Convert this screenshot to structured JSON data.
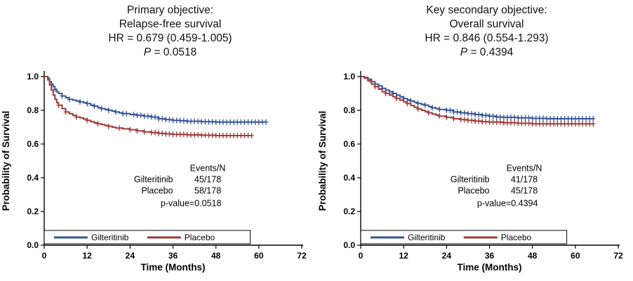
{
  "chart_data": [
    {
      "type": "line",
      "subtype": "kaplan-meier-step",
      "title_lines": [
        "Primary objective:",
        "Relapse-free survival"
      ],
      "hr_text": "HR = 0.679 (0.459-1.005)",
      "p_label": "P",
      "p_value": "= 0.0518",
      "xlabel": "Time (Months)",
      "ylabel": "Probability of Survival",
      "xlim": [
        0,
        72
      ],
      "xticks": [
        0,
        12,
        24,
        36,
        48,
        60,
        72
      ],
      "ylim": [
        0,
        1.0
      ],
      "yticks": [
        0.0,
        0.2,
        0.4,
        0.6,
        0.8,
        1.0
      ],
      "grid": false,
      "legend_position": "bottom-inside-box",
      "annotation": {
        "header": "Events/N",
        "rows": [
          [
            "Gilteritinib",
            "45/178"
          ],
          [
            "Placebo",
            "58/178"
          ]
        ],
        "footer": "p-value=0.0518"
      },
      "series": [
        {
          "name": "Gilteritinib",
          "color": "#35549b",
          "steps": [
            [
              0,
              1.0
            ],
            [
              1,
              0.99
            ],
            [
              1.5,
              0.97
            ],
            [
              2,
              0.955
            ],
            [
              2.5,
              0.94
            ],
            [
              3,
              0.925
            ],
            [
              3.5,
              0.91
            ],
            [
              4,
              0.9
            ],
            [
              5,
              0.885
            ],
            [
              6,
              0.875
            ],
            [
              7,
              0.865
            ],
            [
              8,
              0.86
            ],
            [
              9,
              0.855
            ],
            [
              10,
              0.85
            ],
            [
              11,
              0.845
            ],
            [
              12,
              0.84
            ],
            [
              13,
              0.83
            ],
            [
              14,
              0.825
            ],
            [
              15,
              0.815
            ],
            [
              16,
              0.81
            ],
            [
              17,
              0.805
            ],
            [
              18,
              0.8
            ],
            [
              19,
              0.795
            ],
            [
              20,
              0.79
            ],
            [
              21,
              0.785
            ],
            [
              22,
              0.78
            ],
            [
              24,
              0.775
            ],
            [
              26,
              0.77
            ],
            [
              28,
              0.765
            ],
            [
              30,
              0.76
            ],
            [
              32,
              0.75
            ],
            [
              34,
              0.745
            ],
            [
              36,
              0.74
            ],
            [
              38,
              0.738
            ],
            [
              40,
              0.735
            ],
            [
              44,
              0.732
            ],
            [
              48,
              0.73
            ],
            [
              62,
              0.73
            ]
          ],
          "censors": [
            3,
            5,
            7,
            10,
            12,
            14,
            16,
            18,
            20,
            22,
            23,
            25,
            26,
            27,
            28,
            29,
            30,
            31,
            32,
            33,
            34,
            35,
            36,
            37,
            38,
            39,
            40,
            41,
            42,
            43,
            44,
            45,
            46,
            47,
            48,
            49,
            50,
            51,
            52,
            53,
            54,
            55,
            56,
            57,
            58,
            59,
            60,
            61,
            62
          ]
        },
        {
          "name": "Placebo",
          "color": "#9e3b38",
          "steps": [
            [
              0,
              1.0
            ],
            [
              1,
              0.98
            ],
            [
              1.5,
              0.95
            ],
            [
              2,
              0.92
            ],
            [
              2.5,
              0.89
            ],
            [
              3,
              0.865
            ],
            [
              3.5,
              0.845
            ],
            [
              4,
              0.83
            ],
            [
              5,
              0.81
            ],
            [
              6,
              0.79
            ],
            [
              7,
              0.78
            ],
            [
              8,
              0.77
            ],
            [
              9,
              0.76
            ],
            [
              10,
              0.755
            ],
            [
              11,
              0.748
            ],
            [
              12,
              0.74
            ],
            [
              13,
              0.732
            ],
            [
              14,
              0.725
            ],
            [
              15,
              0.72
            ],
            [
              16,
              0.715
            ],
            [
              17,
              0.71
            ],
            [
              18,
              0.705
            ],
            [
              19,
              0.7
            ],
            [
              20,
              0.695
            ],
            [
              22,
              0.69
            ],
            [
              24,
              0.685
            ],
            [
              26,
              0.678
            ],
            [
              28,
              0.672
            ],
            [
              30,
              0.668
            ],
            [
              32,
              0.663
            ],
            [
              34,
              0.66
            ],
            [
              36,
              0.657
            ],
            [
              40,
              0.654
            ],
            [
              44,
              0.652
            ],
            [
              48,
              0.65
            ],
            [
              58,
              0.65
            ]
          ],
          "censors": [
            4,
            6,
            9,
            12,
            15,
            18,
            21,
            24,
            26,
            28,
            30,
            31,
            32,
            33,
            34,
            35,
            36,
            37,
            38,
            39,
            40,
            41,
            42,
            43,
            44,
            45,
            46,
            47,
            48,
            49,
            50,
            51,
            52,
            53,
            54,
            55,
            56,
            57,
            58
          ]
        }
      ]
    },
    {
      "type": "line",
      "subtype": "kaplan-meier-step",
      "title_lines": [
        "Key secondary objective:",
        "Overall survival"
      ],
      "hr_text": "HR = 0.846 (0.554-1.293)",
      "p_label": "P",
      "p_value": "= 0.4394",
      "xlabel": "Time (Months)",
      "ylabel": "Probability of Survival",
      "xlim": [
        0,
        72
      ],
      "xticks": [
        0,
        12,
        24,
        36,
        48,
        60,
        72
      ],
      "ylim": [
        0,
        1.0
      ],
      "yticks": [
        0.0,
        0.2,
        0.4,
        0.6,
        0.8,
        1.0
      ],
      "grid": false,
      "legend_position": "bottom-inside-box",
      "annotation": {
        "header": "Events/N",
        "rows": [
          [
            "Gilteritinib",
            "41/178"
          ],
          [
            "Placebo",
            "45/178"
          ]
        ],
        "footer": "p-value=0.4394"
      },
      "series": [
        {
          "name": "Gilteritinib",
          "color": "#35549b",
          "steps": [
            [
              0,
              1.0
            ],
            [
              1,
              0.995
            ],
            [
              2,
              0.985
            ],
            [
              3,
              0.97
            ],
            [
              4,
              0.955
            ],
            [
              5,
              0.945
            ],
            [
              6,
              0.93
            ],
            [
              7,
              0.92
            ],
            [
              8,
              0.91
            ],
            [
              9,
              0.9
            ],
            [
              10,
              0.89
            ],
            [
              11,
              0.88
            ],
            [
              12,
              0.87
            ],
            [
              13,
              0.862
            ],
            [
              14,
              0.855
            ],
            [
              15,
              0.847
            ],
            [
              16,
              0.84
            ],
            [
              17,
              0.835
            ],
            [
              18,
              0.83
            ],
            [
              19,
              0.822
            ],
            [
              20,
              0.815
            ],
            [
              21,
              0.81
            ],
            [
              22,
              0.805
            ],
            [
              24,
              0.8
            ],
            [
              26,
              0.79
            ],
            [
              28,
              0.785
            ],
            [
              30,
              0.78
            ],
            [
              32,
              0.775
            ],
            [
              34,
              0.77
            ],
            [
              36,
              0.765
            ],
            [
              38,
              0.76
            ],
            [
              40,
              0.758
            ],
            [
              44,
              0.755
            ],
            [
              48,
              0.752
            ],
            [
              52,
              0.75
            ],
            [
              65,
              0.75
            ]
          ],
          "censors": [
            3,
            6,
            9,
            12,
            14,
            16,
            18,
            20,
            22,
            24,
            25,
            26,
            27,
            28,
            29,
            30,
            31,
            32,
            33,
            34,
            35,
            36,
            37,
            38,
            39,
            40,
            41,
            42,
            43,
            44,
            45,
            46,
            47,
            48,
            49,
            50,
            51,
            52,
            53,
            54,
            55,
            56,
            57,
            58,
            59,
            60,
            61,
            62,
            63,
            64,
            65
          ]
        },
        {
          "name": "Placebo",
          "color": "#9e3b38",
          "steps": [
            [
              0,
              1.0
            ],
            [
              1,
              0.99
            ],
            [
              2,
              0.975
            ],
            [
              3,
              0.955
            ],
            [
              4,
              0.94
            ],
            [
              5,
              0.925
            ],
            [
              6,
              0.91
            ],
            [
              7,
              0.9
            ],
            [
              8,
              0.89
            ],
            [
              9,
              0.88
            ],
            [
              10,
              0.87
            ],
            [
              11,
              0.86
            ],
            [
              12,
              0.85
            ],
            [
              13,
              0.84
            ],
            [
              14,
              0.828
            ],
            [
              15,
              0.818
            ],
            [
              16,
              0.808
            ],
            [
              17,
              0.8
            ],
            [
              18,
              0.792
            ],
            [
              19,
              0.785
            ],
            [
              20,
              0.778
            ],
            [
              21,
              0.772
            ],
            [
              22,
              0.766
            ],
            [
              24,
              0.758
            ],
            [
              26,
              0.75
            ],
            [
              28,
              0.745
            ],
            [
              30,
              0.74
            ],
            [
              32,
              0.736
            ],
            [
              34,
              0.732
            ],
            [
              36,
              0.73
            ],
            [
              40,
              0.726
            ],
            [
              44,
              0.723
            ],
            [
              48,
              0.72
            ],
            [
              65,
              0.72
            ]
          ],
          "censors": [
            4,
            7,
            10,
            13,
            16,
            19,
            22,
            24,
            26,
            28,
            29,
            30,
            31,
            32,
            33,
            34,
            35,
            36,
            37,
            38,
            39,
            40,
            41,
            42,
            43,
            44,
            45,
            46,
            47,
            48,
            49,
            50,
            51,
            52,
            53,
            54,
            55,
            56,
            57,
            58,
            59,
            60,
            61,
            62,
            63,
            64,
            65
          ]
        }
      ]
    }
  ]
}
